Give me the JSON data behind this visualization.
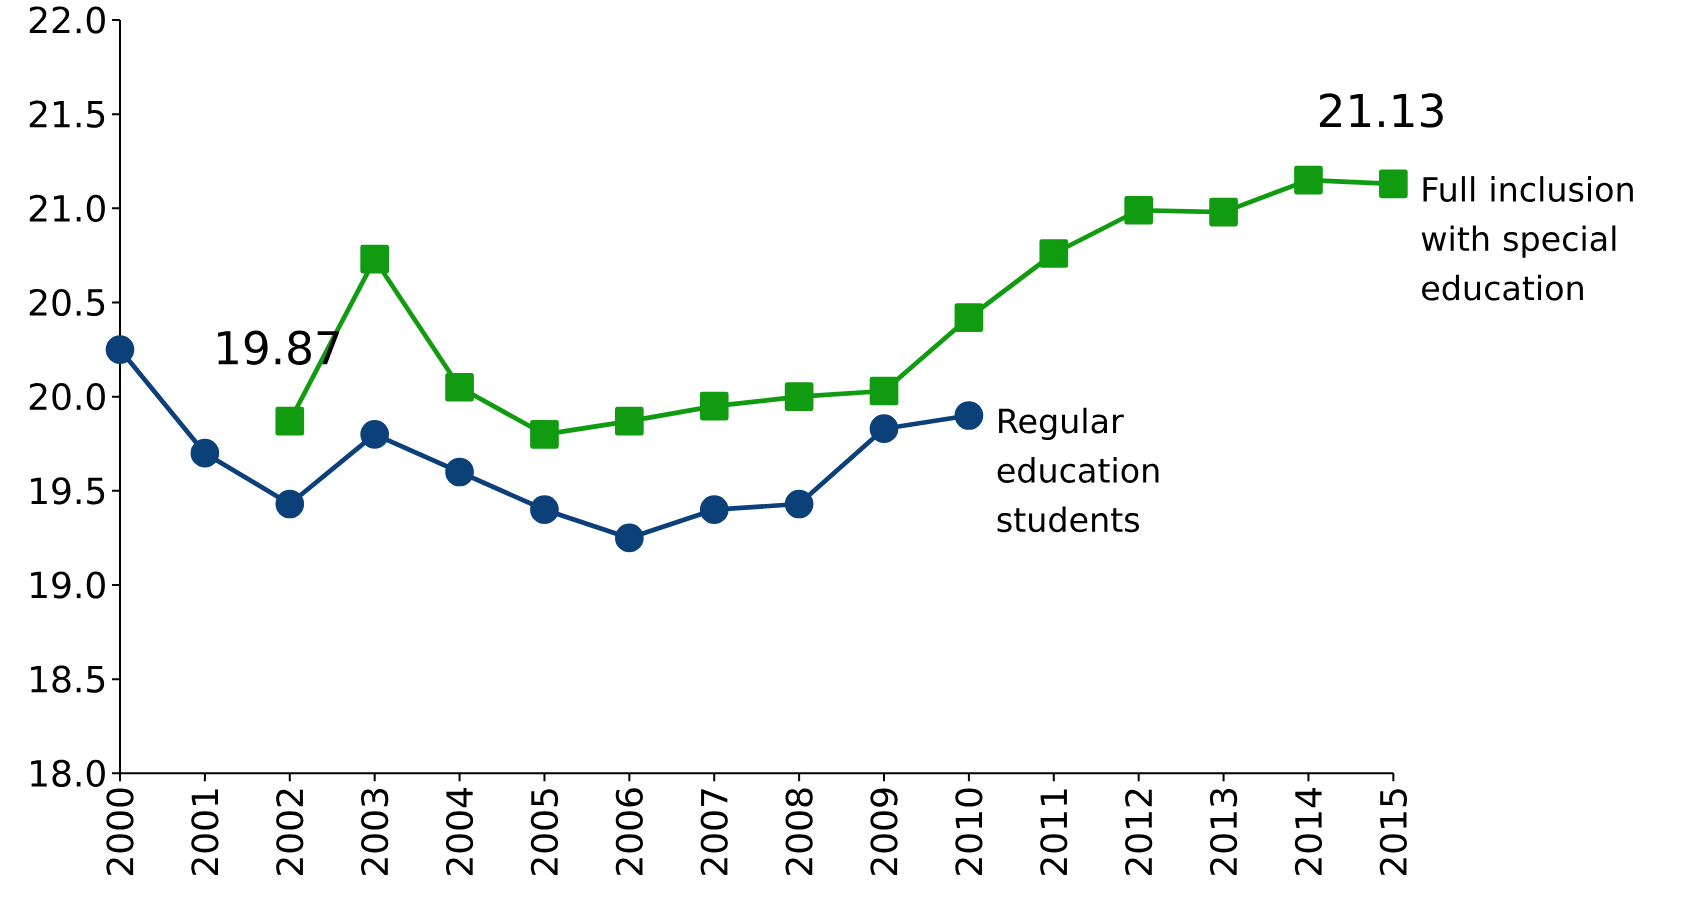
{
  "chart_data": {
    "type": "line",
    "x": [
      2000,
      2001,
      2002,
      2003,
      2004,
      2005,
      2006,
      2007,
      2008,
      2009,
      2010,
      2011,
      2012,
      2013,
      2014,
      2015
    ],
    "series": [
      {
        "name": "Regular education students",
        "color": "#0b4079",
        "marker": "circle",
        "values": [
          20.25,
          19.7,
          19.43,
          19.8,
          19.6,
          19.4,
          19.25,
          19.4,
          19.43,
          19.83,
          19.9,
          null,
          null,
          null,
          null,
          null
        ]
      },
      {
        "name": "Full inclusion with special education",
        "color": "#109b10",
        "marker": "square",
        "values": [
          null,
          null,
          19.87,
          20.73,
          20.05,
          19.8,
          19.87,
          19.95,
          20.0,
          20.03,
          20.42,
          20.76,
          20.99,
          20.98,
          21.15,
          21.13
        ]
      }
    ],
    "xlim": [
      2000,
      2015
    ],
    "xticks": [
      2000,
      2001,
      2002,
      2003,
      2004,
      2005,
      2006,
      2007,
      2008,
      2009,
      2010,
      2011,
      2012,
      2013,
      2014,
      2015
    ],
    "ylim": [
      18,
      22
    ],
    "yticks": [
      {
        "value": 18,
        "label": "18.0"
      },
      {
        "value": 18.5,
        "label": "18.5"
      },
      {
        "value": 19,
        "label": "19.0"
      },
      {
        "value": 19.5,
        "label": "19.5"
      },
      {
        "value": 20,
        "label": "20.0"
      },
      {
        "value": 20.5,
        "label": "20.5"
      },
      {
        "value": 21,
        "label": "21.0"
      },
      {
        "value": 21.5,
        "label": "21.5"
      },
      {
        "value": 22,
        "label": "22.0"
      }
    ],
    "annotations": [
      {
        "text": "19.87",
        "x": 2002,
        "y": 19.87
      },
      {
        "text": "21.13",
        "x": 2015,
        "y": 21.13
      }
    ],
    "grid": false,
    "line_style": "solid"
  }
}
